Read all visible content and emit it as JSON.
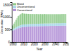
{
  "chart_data": {
    "type": "bar",
    "stacked": true,
    "legend": "upper left",
    "y_label": "Generation (TWh)",
    "x_label": "Year",
    "x": [
      2000,
      2001,
      2002,
      2003,
      2004,
      2005,
      2006,
      2007,
      2008,
      2009,
      2010,
      2011,
      2012,
      2013,
      2014,
      2015,
      2016,
      2017,
      2018,
      2019,
      2020,
      2021,
      2022,
      2023,
      2024,
      2025,
      2026,
      2027,
      2028,
      2029,
      2030,
      2031,
      2032,
      2033,
      2034,
      2035,
      2036,
      2037,
      2038,
      2039,
      2040,
      2041,
      2042,
      2043,
      2044,
      2045,
      2046,
      2047,
      2048,
      2049,
      2050
    ],
    "xlim": [
      1999,
      2051
    ],
    "xticks": [
      2000,
      2010,
      2020,
      2030,
      2040,
      2050
    ],
    "ylim": [
      0,
      1600
    ],
    "yticks": [
      0,
      500,
      1000,
      1500
    ],
    "series": [
      {
        "name": "Conventional",
        "color": "#b18fd6",
        "values": [
          450,
          470,
          490,
          510,
          530,
          550,
          560,
          575,
          585,
          595,
          600,
          605,
          610,
          610,
          615,
          615,
          620,
          620,
          620,
          625,
          625,
          625,
          630,
          630,
          630,
          630,
          635,
          635,
          635,
          635,
          640,
          640,
          640,
          640,
          640,
          645,
          645,
          645,
          645,
          645,
          650,
          650,
          650,
          650,
          650,
          650,
          655,
          655,
          655,
          655,
          655
        ]
      },
      {
        "name": "Unconventional",
        "color": "#9fd3e6",
        "values": [
          60,
          65,
          70,
          75,
          80,
          85,
          90,
          95,
          100,
          100,
          100,
          100,
          100,
          100,
          100,
          100,
          100,
          100,
          100,
          100,
          100,
          100,
          100,
          100,
          100,
          100,
          100,
          100,
          100,
          100,
          100,
          100,
          100,
          100,
          100,
          100,
          100,
          100,
          100,
          100,
          100,
          100,
          100,
          100,
          100,
          100,
          100,
          100,
          100,
          100,
          100
        ]
      },
      {
        "name": "Mixed",
        "color": "#8fc98a",
        "values": [
          150,
          200,
          250,
          300,
          350,
          400,
          420,
          440,
          450,
          460,
          440,
          430,
          420,
          420,
          410,
          410,
          400,
          400,
          400,
          395,
          395,
          390,
          390,
          390,
          385,
          385,
          385,
          380,
          380,
          380,
          380,
          375,
          375,
          375,
          375,
          370,
          370,
          370,
          370,
          370,
          365,
          365,
          365,
          365,
          365,
          365,
          365,
          365,
          365,
          365,
          365
        ]
      }
    ]
  }
}
